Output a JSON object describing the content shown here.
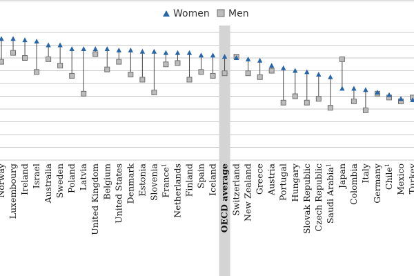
{
  "chart_data": {
    "type": "scatter",
    "title": "",
    "xlabel": "",
    "ylabel": "",
    "ylim": [
      0,
      10
    ],
    "grid": true,
    "legend_position": "top-center",
    "highlight_category": "OECD average",
    "colors": {
      "women": "#2866a8",
      "men": "#bcbcbc",
      "men_stroke": "#6e6e6e",
      "highlight_band": "#d4d4d4",
      "grid": "#c8c8c8",
      "connector": "#444444"
    },
    "categories": [
      {
        "name": "Norway",
        "sup": ""
      },
      {
        "name": "Luxembourg",
        "sup": ""
      },
      {
        "name": "Ireland",
        "sup": ""
      },
      {
        "name": "Israel",
        "sup": ""
      },
      {
        "name": "Australia",
        "sup": ""
      },
      {
        "name": "Sweden",
        "sup": ""
      },
      {
        "name": "Poland",
        "sup": ""
      },
      {
        "name": "Latvia",
        "sup": ""
      },
      {
        "name": "United Kingdom",
        "sup": ""
      },
      {
        "name": "Belgium",
        "sup": ""
      },
      {
        "name": "United States",
        "sup": ""
      },
      {
        "name": "Denmark",
        "sup": ""
      },
      {
        "name": "Estonia",
        "sup": ""
      },
      {
        "name": "Slovenia",
        "sup": ""
      },
      {
        "name": "France",
        "sup": "1"
      },
      {
        "name": "Netherlands",
        "sup": ""
      },
      {
        "name": "Finland",
        "sup": ""
      },
      {
        "name": "Spain",
        "sup": ""
      },
      {
        "name": "Iceland",
        "sup": ""
      },
      {
        "name": "OECD average",
        "sup": ""
      },
      {
        "name": "Switzerland",
        "sup": ""
      },
      {
        "name": "New Zealand",
        "sup": ""
      },
      {
        "name": "Greece",
        "sup": ""
      },
      {
        "name": "Austria",
        "sup": ""
      },
      {
        "name": "Portugal",
        "sup": ""
      },
      {
        "name": "Hungary",
        "sup": ""
      },
      {
        "name": "Slovak Republic",
        "sup": ""
      },
      {
        "name": "Czech Republic",
        "sup": ""
      },
      {
        "name": "Saudi Arabia",
        "sup": "1"
      },
      {
        "name": "Japan",
        "sup": ""
      },
      {
        "name": "Colombia",
        "sup": ""
      },
      {
        "name": "Italy",
        "sup": ""
      },
      {
        "name": "Germany",
        "sup": ""
      },
      {
        "name": "Chile",
        "sup": "1"
      },
      {
        "name": "Mexico",
        "sup": ""
      },
      {
        "name": "Turkey",
        "sup": ""
      }
    ],
    "series": [
      {
        "name": "Women",
        "marker": "triangle",
        "values": [
          9.5,
          9.5,
          9.4,
          9.3,
          9.0,
          9.0,
          8.7,
          8.7,
          8.7,
          8.7,
          8.6,
          8.6,
          8.5,
          8.5,
          8.4,
          8.4,
          8.4,
          8.2,
          8.2,
          8.1,
          8.0,
          7.9,
          7.8,
          7.4,
          7.2,
          7.0,
          6.9,
          6.7,
          6.5,
          5.6,
          5.6,
          5.5,
          5.3,
          5.1,
          4.8,
          4.7
        ]
      },
      {
        "name": "Men",
        "marker": "square",
        "values": [
          7.7,
          8.4,
          8.0,
          6.9,
          7.9,
          7.4,
          6.6,
          5.2,
          8.3,
          7.1,
          7.7,
          6.7,
          6.3,
          5.3,
          7.5,
          7.6,
          6.3,
          6.9,
          6.6,
          6.8,
          8.1,
          6.8,
          6.5,
          7.0,
          4.5,
          5.0,
          4.5,
          4.8,
          4.1,
          7.9,
          4.6,
          3.9,
          5.2,
          4.9,
          4.6,
          4.9
        ]
      }
    ]
  }
}
